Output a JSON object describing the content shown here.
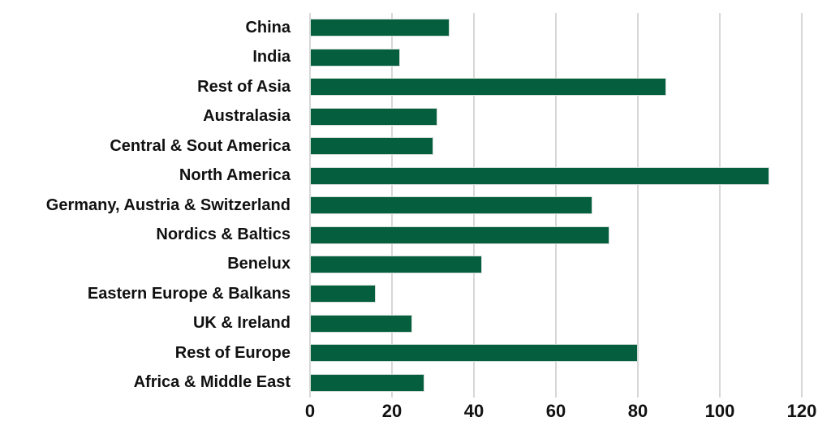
{
  "chart_data": {
    "type": "bar",
    "orientation": "horizontal",
    "title": "",
    "xlabel": "",
    "ylabel": "",
    "categories": [
      "China",
      "India",
      "Rest of Asia",
      "Australasia",
      "Central & Sout America",
      "North America",
      "Germany, Austria & Switzerland",
      "Nordics & Baltics",
      "Benelux",
      "Eastern Europe & Balkans",
      "UK & Ireland",
      "Rest of Europe",
      "Africa & Middle East"
    ],
    "values": [
      34,
      22,
      87,
      31,
      30,
      112,
      69,
      73,
      42,
      16,
      25,
      80,
      28
    ],
    "xlim": [
      0,
      120
    ],
    "xticks": [
      0,
      20,
      40,
      60,
      80,
      100,
      120
    ],
    "grid": "vertical-only",
    "legend": "none",
    "colors": {
      "bar": "#055F3E",
      "bar_outline": "#d3ded7",
      "gridline": "#d7d7d7",
      "text": "#111111",
      "background": "#ffffff"
    }
  }
}
